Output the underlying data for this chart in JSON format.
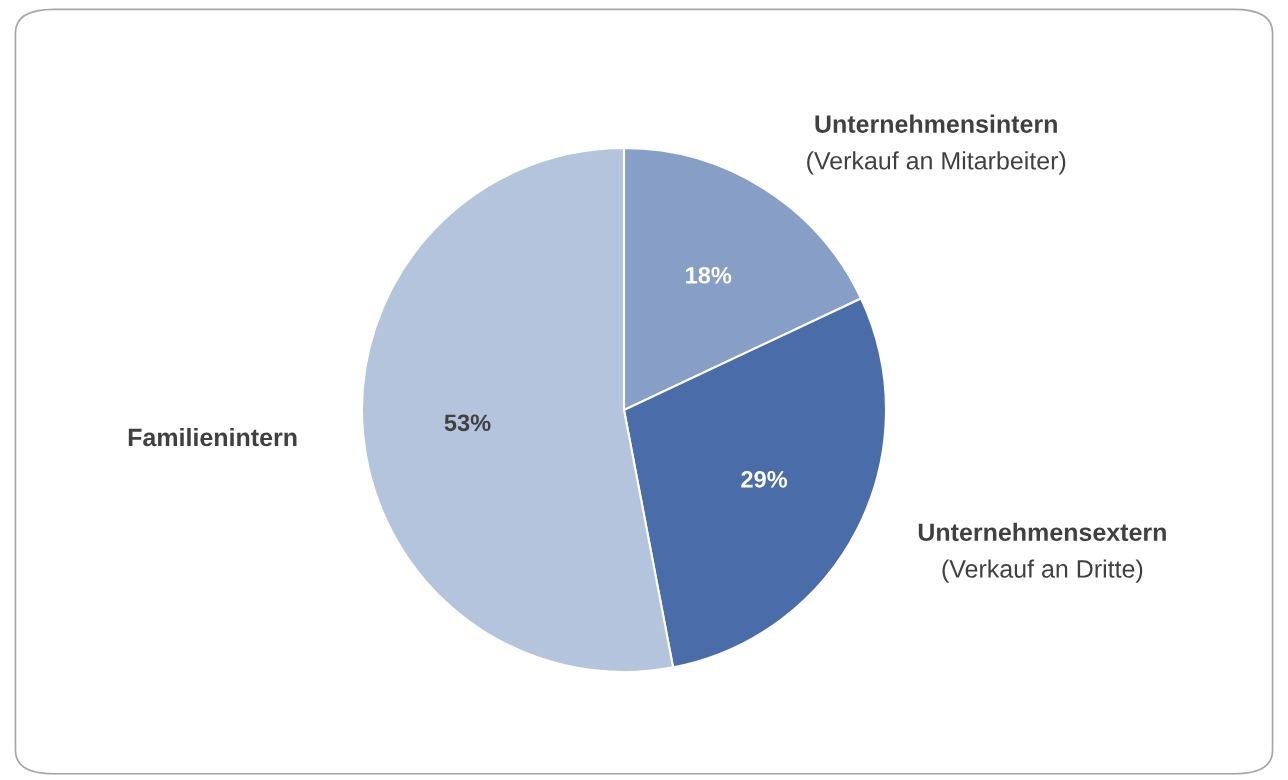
{
  "chart_data": {
    "type": "pie",
    "categories": [
      "Unternehmensintern\n(Verkauf an Mitarbeiter)",
      "Unternehmensextern\n(Verkauf an Dritte)",
      "Familienintern"
    ],
    "values": [
      18,
      29,
      53
    ],
    "colors": [
      "#879fc6",
      "#4a6ca8",
      "#b5c4dd"
    ],
    "value_labels": [
      "18%",
      "29%",
      "53%"
    ],
    "legend": false
  }
}
